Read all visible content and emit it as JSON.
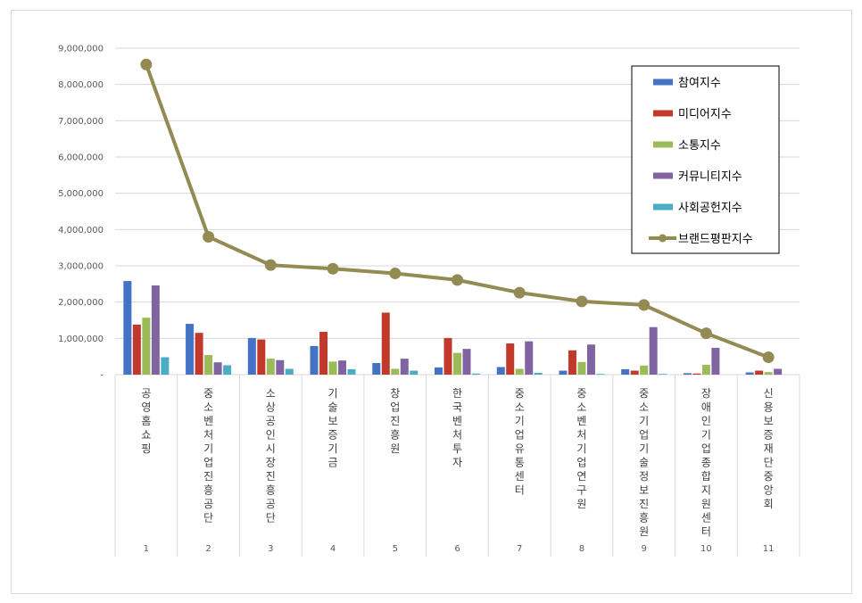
{
  "chart_data": {
    "type": "bar",
    "title": "",
    "xlabel": "",
    "ylabel": "",
    "ylim": [
      0,
      9000000
    ],
    "y_ticks": [
      0,
      1000000,
      2000000,
      3000000,
      4000000,
      5000000,
      6000000,
      7000000,
      8000000,
      9000000
    ],
    "y_tick_labels": [
      "-",
      "1,000,000",
      "2,000,000",
      "3,000,000",
      "4,000,000",
      "5,000,000",
      "6,000,000",
      "7,000,000",
      "8,000,000",
      "9,000,000"
    ],
    "grid": true,
    "legend_position": "top-right",
    "categories": [
      "공영홈쇼핑",
      "중소벤처기업진흥공단",
      "소상공인시장진흥공단",
      "기술보증기금",
      "창업진흥원",
      "한국벤처투자",
      "중소기업유통센터",
      "중소벤처기업연구원",
      "중소기업기술정보진흥원",
      "장애인기업종합지원센터",
      "신용보증재단중앙회"
    ],
    "ranks": [
      "1",
      "2",
      "3",
      "4",
      "5",
      "6",
      "7",
      "8",
      "9",
      "10",
      "11"
    ],
    "series": [
      {
        "name": "참여지수",
        "type": "bar",
        "color": "#4472c4",
        "values": [
          2580000,
          1400000,
          1010000,
          790000,
          320000,
          200000,
          210000,
          110000,
          150000,
          40000,
          60000
        ]
      },
      {
        "name": "미디어지수",
        "type": "bar",
        "color": "#c0392b",
        "values": [
          1380000,
          1150000,
          970000,
          1180000,
          1710000,
          1010000,
          860000,
          670000,
          110000,
          30000,
          110000
        ]
      },
      {
        "name": "소통지수",
        "type": "bar",
        "color": "#9bbb59",
        "values": [
          1570000,
          540000,
          440000,
          360000,
          160000,
          600000,
          160000,
          350000,
          250000,
          270000,
          70000
        ]
      },
      {
        "name": "커뮤니티지수",
        "type": "bar",
        "color": "#8064a2",
        "values": [
          2460000,
          340000,
          400000,
          390000,
          440000,
          710000,
          920000,
          830000,
          1310000,
          740000,
          160000
        ]
      },
      {
        "name": "사회공헌지수",
        "type": "bar",
        "color": "#4bacc6",
        "values": [
          480000,
          260000,
          160000,
          150000,
          110000,
          30000,
          50000,
          20000,
          20000,
          0,
          0
        ]
      },
      {
        "name": "브랜드평판지수",
        "type": "line",
        "color": "#948a54",
        "values": [
          8550000,
          3800000,
          3020000,
          2920000,
          2790000,
          2610000,
          2260000,
          2020000,
          1920000,
          1140000,
          480000
        ]
      }
    ]
  }
}
